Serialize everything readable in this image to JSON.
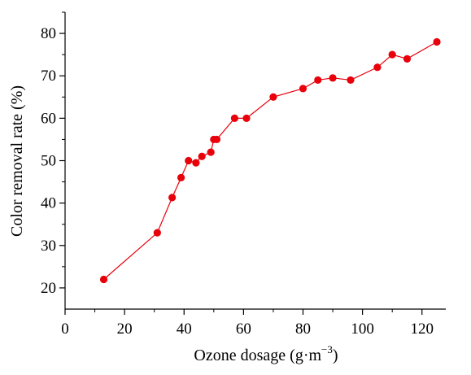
{
  "chart_data": {
    "type": "line",
    "xlabel": "Ozone dosage (g·m",
    "xlabel_sup": "−3",
    "xlabel_end": ")",
    "ylabel": "Color removal rate (%)",
    "xlim": [
      0,
      128
    ],
    "ylim": [
      15,
      85
    ],
    "xticks": [
      0,
      20,
      40,
      60,
      80,
      100,
      120
    ],
    "yticks": [
      20,
      30,
      40,
      50,
      60,
      70,
      80
    ],
    "series": [
      {
        "color": "#e8000b",
        "marker": "circle",
        "points": [
          [
            13,
            22
          ],
          [
            31,
            33
          ],
          [
            36,
            41.3
          ],
          [
            39,
            46
          ],
          [
            41.5,
            50
          ],
          [
            44,
            49.5
          ],
          [
            46,
            51
          ],
          [
            49,
            52
          ],
          [
            50,
            55
          ],
          [
            51,
            55
          ],
          [
            57,
            60
          ],
          [
            61,
            60
          ],
          [
            70,
            65
          ],
          [
            80,
            67
          ],
          [
            85,
            69
          ],
          [
            90,
            69.5
          ],
          [
            96,
            69
          ],
          [
            105,
            72
          ],
          [
            110,
            75
          ],
          [
            115,
            74
          ],
          [
            125,
            78
          ]
        ]
      }
    ]
  }
}
